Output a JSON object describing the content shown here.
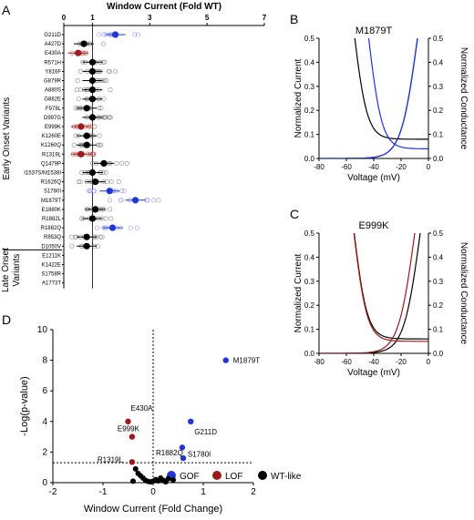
{
  "panels": {
    "a": "A",
    "b": "B",
    "c": "C",
    "d": "D"
  },
  "chart_data": [
    {
      "type": "scatter",
      "panel": "A",
      "xlabel": "Window Current (Fold WT)",
      "xlim": [
        0,
        7
      ],
      "xticks": [
        "0",
        "1",
        "3",
        "5",
        "7"
      ],
      "ylabels_groups": [
        "Early Onset Variants",
        "Late Onset Variants"
      ],
      "variants": [
        "G211D",
        "A427D",
        "E430A",
        "R571H",
        "Y816F",
        "G879R",
        "A880S",
        "G882E",
        "F978L",
        "D997G",
        "E999K",
        "K1260E",
        "K1260Q",
        "R1319L",
        "Q1479P",
        "I1537S/M1538I",
        "R1626Q",
        "S1780I",
        "M1879T",
        "E1880K",
        "R1882L",
        "R1882Q",
        "R853Q",
        "D1050V",
        "E1211K",
        "K1422E",
        "S1758R",
        "A1773T"
      ],
      "means": [
        1.8,
        0.7,
        0.5,
        1.0,
        1.0,
        1.0,
        1.0,
        1.0,
        0.8,
        1.0,
        0.6,
        0.8,
        0.8,
        0.6,
        1.4,
        1.0,
        1.1,
        1.6,
        2.5,
        1.1,
        1.0,
        1.7,
        0.8,
        0.8,
        null,
        null,
        null,
        null
      ],
      "classes": [
        "GOF",
        "WT-like",
        "LOF",
        "WT-like",
        "WT-like",
        "WT-like",
        "WT-like",
        "WT-like",
        "WT-like",
        "WT-like",
        "LOF",
        "WT-like",
        "WT-like",
        "LOF",
        "WT-like",
        "WT-like",
        "WT-like",
        "GOF",
        "GOF",
        "WT-like",
        "WT-like",
        "GOF",
        "WT-like",
        "WT-like",
        null,
        null,
        null,
        null
      ],
      "legend": [
        {
          "label": "GOF",
          "color": "#1f35d6"
        },
        {
          "label": "LOF",
          "color": "#9b1b1b"
        },
        {
          "label": "WT-like",
          "color": "#000000"
        }
      ]
    },
    {
      "type": "line",
      "panel": "B",
      "title": "M1879T",
      "xlabel": "Voltage (mV)",
      "ylabel_left": "Normalized Current",
      "ylabel_right": "Normalized Conductance",
      "xlim": [
        -80,
        0
      ],
      "ylim": [
        0,
        0.5
      ],
      "xticks": [
        "-80",
        "-60",
        "-40",
        "-20",
        "0"
      ],
      "yticks": [
        "0.0",
        "0.1",
        "0.2",
        "0.3",
        "0.4",
        "0.5"
      ]
    },
    {
      "type": "line",
      "panel": "C",
      "title": "E999K",
      "xlabel": "Voltage (mV)",
      "ylabel_left": "Normalized Current",
      "ylabel_right": "Normalized Conductance",
      "xlim": [
        -80,
        0
      ],
      "ylim": [
        0,
        0.5
      ],
      "xticks": [
        "-80",
        "-60",
        "-40",
        "-20",
        "0"
      ],
      "yticks": [
        "0.0",
        "0.1",
        "0.2",
        "0.3",
        "0.4",
        "0.5"
      ]
    },
    {
      "type": "scatter",
      "panel": "D",
      "xlabel": "Window Current (Fold Change)",
      "ylabel": "-Log(p-value)",
      "xlim": [
        -2,
        2
      ],
      "ylim": [
        0,
        10
      ],
      "xticks": [
        "-2",
        "-1",
        "0",
        "1",
        "2"
      ],
      "yticks": [
        "0",
        "2",
        "4",
        "6",
        "8",
        "10"
      ],
      "labeled_points": [
        {
          "label": "M1879T",
          "x": 1.45,
          "y": 8.0,
          "class": "GOF"
        },
        {
          "label": "G211D",
          "x": 0.75,
          "y": 4.0,
          "class": "GOF"
        },
        {
          "label": "S1780I",
          "x": 0.58,
          "y": 2.3,
          "class": "GOF"
        },
        {
          "label": "R1882Q",
          "x": 0.6,
          "y": 1.6,
          "class": "GOF"
        },
        {
          "label": "E430A",
          "x": -0.5,
          "y": 4.0,
          "class": "LOF"
        },
        {
          "label": "E999K",
          "x": -0.42,
          "y": 3.0,
          "class": "LOF"
        },
        {
          "label": "R1319L",
          "x": -0.42,
          "y": 1.35,
          "class": "LOF"
        }
      ],
      "other_points": [
        {
          "x": -0.35,
          "y": 0.9
        },
        {
          "x": -0.3,
          "y": 0.6
        },
        {
          "x": -0.25,
          "y": 0.45
        },
        {
          "x": -0.2,
          "y": 0.3
        },
        {
          "x": -0.15,
          "y": 0.15
        },
        {
          "x": -0.1,
          "y": 0.08
        },
        {
          "x": -0.05,
          "y": 0.05
        },
        {
          "x": 0.0,
          "y": 0.1
        },
        {
          "x": 0.05,
          "y": 0.2
        },
        {
          "x": 0.1,
          "y": 0.12
        },
        {
          "x": 0.15,
          "y": 0.3
        },
        {
          "x": 0.2,
          "y": 0.15
        },
        {
          "x": 0.25,
          "y": 0.05
        },
        {
          "x": 0.3,
          "y": 0.25
        },
        {
          "x": -0.4,
          "y": 0.1
        },
        {
          "x": 0.4,
          "y": 0.18
        }
      ],
      "colors": {
        "GOF": "#1f35d6",
        "LOF": "#9b1b1b",
        "WT-like": "#000000"
      }
    }
  ]
}
